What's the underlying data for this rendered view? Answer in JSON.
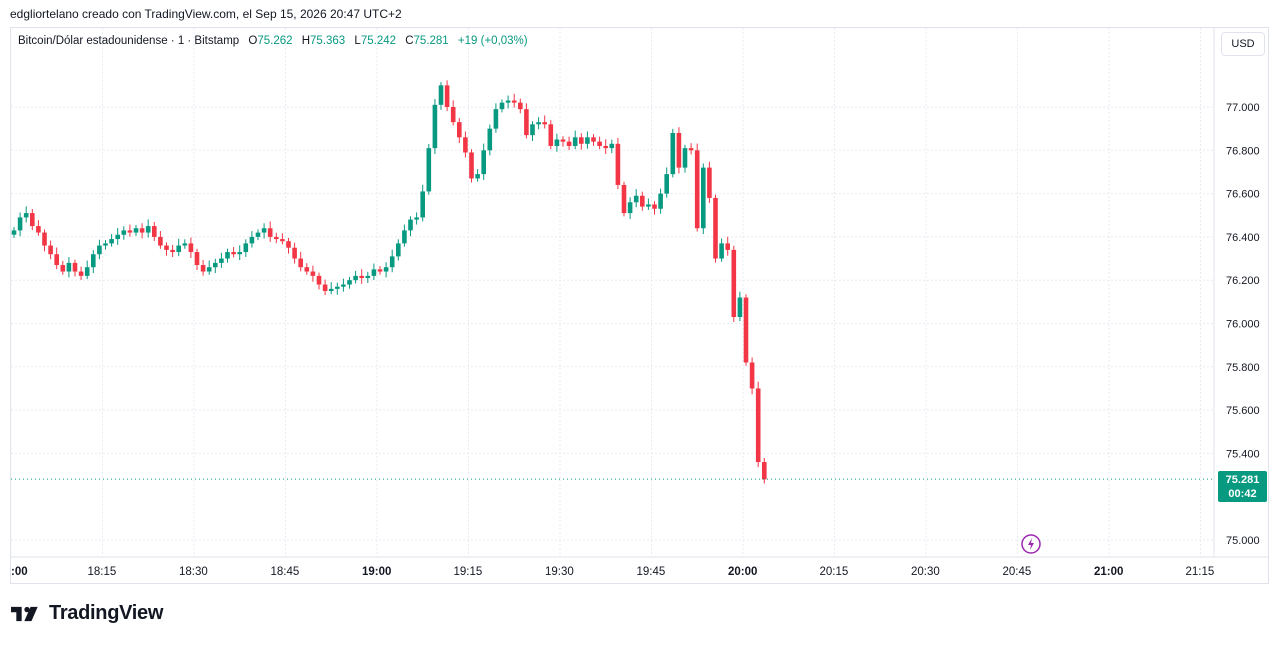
{
  "caption": "edgliortelano creado con TradingView.com, el Sep 15, 2026 20:47 UTC+2",
  "legend": {
    "symbol": "Bitcoin/Dólar estadounidense · 1 · Bitstamp",
    "o_label": "O",
    "o_value": "75.262",
    "h_label": "H",
    "h_value": "75.363",
    "l_label": "L",
    "l_value": "75.242",
    "c_label": "C",
    "c_value": "75.281",
    "change": "+19 (+0,03%)"
  },
  "currency_button": "USD",
  "last_price": {
    "price": "75.281",
    "countdown": "00:42"
  },
  "brand": "TradingView",
  "colors": {
    "up": "#089981",
    "down": "#f23645",
    "grid": "#e0e3eb",
    "text": "#131722"
  },
  "chart_data": {
    "type": "candlestick",
    "y_ticks": [
      "77.000",
      "76.800",
      "76.600",
      "76.400",
      "76.200",
      "76.000",
      "75.800",
      "75.600",
      "75.400",
      "75.000"
    ],
    "x_ticks": [
      {
        "label": ":00",
        "bold": true
      },
      {
        "label": "18:15",
        "bold": false
      },
      {
        "label": "18:30",
        "bold": false
      },
      {
        "label": "18:45",
        "bold": false
      },
      {
        "label": "19:00",
        "bold": true
      },
      {
        "label": "19:15",
        "bold": false
      },
      {
        "label": "19:30",
        "bold": false
      },
      {
        "label": "19:45",
        "bold": false
      },
      {
        "label": "20:00",
        "bold": true
      },
      {
        "label": "20:15",
        "bold": false
      },
      {
        "label": "20:30",
        "bold": false
      },
      {
        "label": "20:45",
        "bold": false
      },
      {
        "label": "21:00",
        "bold": true
      },
      {
        "label": "21:15",
        "bold": false
      }
    ],
    "x_range_minutes": [
      0,
      200
    ],
    "ylim": [
      74.95,
      77.15
    ],
    "last_price": 75.281,
    "closes": [
      76.43,
      76.49,
      76.51,
      76.45,
      76.42,
      76.36,
      76.32,
      76.27,
      76.24,
      76.28,
      76.24,
      76.22,
      76.26,
      76.32,
      76.36,
      76.37,
      76.39,
      76.41,
      76.43,
      76.42,
      76.44,
      76.42,
      76.45,
      76.4,
      76.36,
      76.34,
      76.33,
      76.36,
      76.37,
      76.33,
      76.27,
      76.24,
      76.26,
      76.28,
      76.3,
      76.33,
      76.32,
      76.33,
      76.37,
      76.4,
      76.42,
      76.44,
      76.4,
      76.39,
      76.38,
      76.35,
      76.3,
      76.26,
      76.24,
      76.22,
      76.18,
      76.15,
      76.16,
      76.17,
      76.18,
      76.2,
      76.22,
      76.21,
      76.22,
      76.25,
      76.24,
      76.26,
      76.31,
      76.37,
      76.43,
      76.48,
      76.49,
      76.61,
      76.81,
      77.01,
      77.1,
      77.0,
      76.93,
      76.86,
      76.79,
      76.67,
      76.69,
      76.8,
      76.9,
      76.99,
      77.02,
      77.03,
      77.02,
      76.99,
      76.87,
      76.92,
      76.93,
      76.92,
      76.82,
      76.85,
      76.84,
      76.82,
      76.86,
      76.83,
      76.86,
      76.84,
      76.82,
      76.81,
      76.83,
      76.64,
      76.51,
      76.56,
      76.59,
      76.54,
      76.55,
      76.53,
      76.6,
      76.69,
      76.88,
      76.72,
      76.81,
      76.8,
      76.44,
      76.72,
      76.58,
      76.3,
      76.37,
      76.34,
      76.03,
      76.12,
      75.82,
      75.7,
      75.36,
      75.28
    ]
  }
}
